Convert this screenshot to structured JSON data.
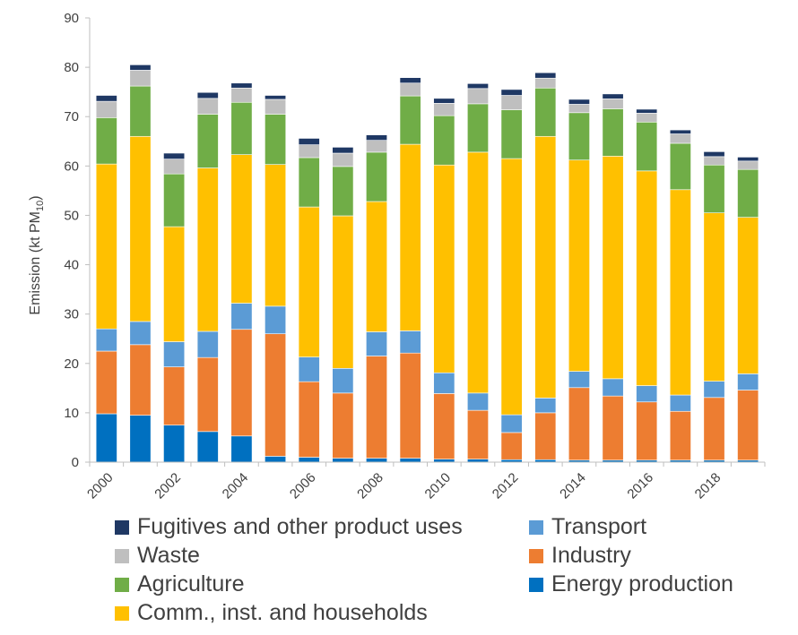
{
  "chart_data": {
    "type": "bar",
    "stacked": true,
    "ylabel": "Emission (kt PM",
    "ylabel_sub": "10",
    "ylabel_end": ")",
    "ylim": [
      0,
      90
    ],
    "yticks": [
      0,
      10,
      20,
      30,
      40,
      50,
      60,
      70,
      80,
      90
    ],
    "grid": false,
    "legend_position": "bottom",
    "categories": [
      "2000",
      "2001",
      "2002",
      "2003",
      "2004",
      "2005",
      "2006",
      "2007",
      "2008",
      "2009",
      "2010",
      "2011",
      "2012",
      "2013",
      "2014",
      "2015",
      "2016",
      "2017",
      "2018",
      "2019"
    ],
    "xtick_labels": [
      "2000",
      "2002",
      "2004",
      "2006",
      "2008",
      "2010",
      "2012",
      "2014",
      "2016",
      "2018"
    ],
    "series": [
      {
        "name": "Energy production",
        "color": "#0070c0",
        "values": [
          9.8,
          9.5,
          7.5,
          6.2,
          5.3,
          1.2,
          1.0,
          0.8,
          0.8,
          0.8,
          0.6,
          0.6,
          0.5,
          0.5,
          0.4,
          0.4,
          0.4,
          0.4,
          0.4,
          0.4
        ]
      },
      {
        "name": "Industry",
        "color": "#ed7d31",
        "values": [
          12.7,
          14.3,
          11.8,
          15.0,
          21.6,
          24.8,
          15.3,
          13.2,
          20.7,
          21.3,
          13.3,
          9.9,
          5.5,
          9.5,
          14.7,
          13.0,
          11.8,
          9.9,
          12.7,
          14.2
        ]
      },
      {
        "name": "Transport",
        "color": "#5b9bd5",
        "values": [
          4.5,
          4.7,
          5.1,
          5.3,
          5.3,
          5.6,
          5.0,
          5.0,
          4.9,
          4.5,
          4.2,
          3.5,
          3.6,
          3.0,
          3.3,
          3.5,
          3.3,
          3.3,
          3.3,
          3.3
        ]
      },
      {
        "name": "Comm., inst. and households",
        "color": "#ffc000",
        "values": [
          33.4,
          37.5,
          23.3,
          33.1,
          30.1,
          28.7,
          30.4,
          30.9,
          26.4,
          37.8,
          42.1,
          48.8,
          51.9,
          53.0,
          42.8,
          45.1,
          43.5,
          41.6,
          34.1,
          31.7
        ]
      },
      {
        "name": "Agriculture",
        "color": "#70ad47",
        "values": [
          9.4,
          10.2,
          10.7,
          10.9,
          10.6,
          10.2,
          10.0,
          10.0,
          10.0,
          9.8,
          10.0,
          9.8,
          9.9,
          9.8,
          9.6,
          9.6,
          9.9,
          9.4,
          9.7,
          9.7
        ]
      },
      {
        "name": "Waste",
        "color": "#bfbfbf",
        "values": [
          3.3,
          3.2,
          3.0,
          3.2,
          2.9,
          3.0,
          2.6,
          2.7,
          2.4,
          2.6,
          2.5,
          3.1,
          2.9,
          2.0,
          1.7,
          2.0,
          1.8,
          1.9,
          1.7,
          1.7
        ]
      },
      {
        "name": "Fugitives and other product uses",
        "color": "#1f3864",
        "values": [
          1.2,
          1.1,
          1.2,
          1.2,
          1.0,
          0.8,
          1.3,
          1.2,
          1.1,
          1.1,
          1.0,
          1.0,
          1.2,
          1.1,
          1.0,
          1.0,
          0.8,
          0.8,
          1.0,
          0.8
        ]
      }
    ],
    "legend_order": [
      "Fugitives and other product uses",
      "Transport",
      "Waste",
      "Industry",
      "Agriculture",
      "Energy production",
      "Comm., inst. and households"
    ]
  }
}
